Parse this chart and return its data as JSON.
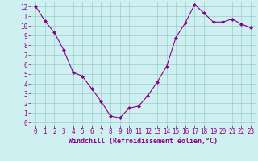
{
  "x": [
    0,
    1,
    2,
    3,
    4,
    5,
    6,
    7,
    8,
    9,
    10,
    11,
    12,
    13,
    14,
    15,
    16,
    17,
    18,
    19,
    20,
    21,
    22,
    23
  ],
  "y": [
    12.0,
    10.5,
    9.3,
    7.5,
    5.2,
    4.8,
    3.5,
    2.2,
    0.7,
    0.5,
    1.5,
    1.7,
    2.8,
    4.2,
    5.8,
    8.8,
    10.3,
    12.2,
    11.3,
    10.4,
    10.4,
    10.7,
    10.2,
    9.8
  ],
  "line_color": "#8B008B",
  "marker": "D",
  "marker_size": 2,
  "bg_color": "#cff0f0",
  "grid_color": "#99cccc",
  "xlabel": "Windchill (Refroidissement éolien,°C)",
  "xlim": [
    0,
    23
  ],
  "ylim": [
    0,
    12
  ],
  "xticks": [
    0,
    1,
    2,
    3,
    4,
    5,
    6,
    7,
    8,
    9,
    10,
    11,
    12,
    13,
    14,
    15,
    16,
    17,
    18,
    19,
    20,
    21,
    22,
    23
  ],
  "yticks": [
    0,
    1,
    2,
    3,
    4,
    5,
    6,
    7,
    8,
    9,
    10,
    11,
    12
  ],
  "tick_fontsize": 5.5,
  "xlabel_fontsize": 6.0
}
